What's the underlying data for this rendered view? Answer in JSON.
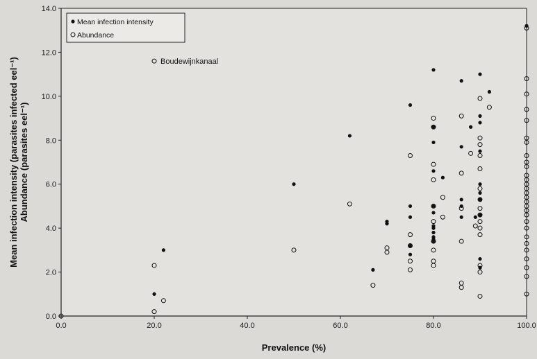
{
  "chart_data": {
    "type": "scatter",
    "xlabel": "Prevalence (%)",
    "ylabel_lines": [
      "Mean infection intensity (parasites infected eel⁻¹)",
      "Abundance (parasites eel⁻¹)"
    ],
    "xlim": [
      0,
      100
    ],
    "ylim": [
      0,
      14
    ],
    "x_ticks": [
      0,
      20,
      40,
      60,
      80,
      100
    ],
    "x_tick_labels": [
      "0.0",
      "20.0",
      "40.0",
      "60.0",
      "80.0",
      "100.0"
    ],
    "y_ticks": [
      0,
      2,
      4,
      6,
      8,
      10,
      12,
      14
    ],
    "y_tick_labels": [
      "0.0",
      "2.0",
      "4.0",
      "6.0",
      "8.0",
      "10.0",
      "12.0",
      "14.0"
    ],
    "grid": false,
    "legend_position": "top-left",
    "annotation": {
      "label": "Boudewijnkanaal",
      "x": 20,
      "y": 11.6
    },
    "series": [
      {
        "name": "Mean infection intensity",
        "marker": "filled-circle",
        "points": [
          [
            20,
            1.0
          ],
          [
            22,
            3.0
          ],
          [
            50,
            6.0
          ],
          [
            62,
            8.2
          ],
          [
            67,
            2.1
          ],
          [
            70,
            4.3
          ],
          [
            70,
            4.2
          ],
          [
            75,
            9.6
          ],
          [
            75,
            5.0
          ],
          [
            75,
            4.5
          ],
          [
            75,
            3.2
          ],
          [
            75,
            2.8
          ],
          [
            80,
            11.2
          ],
          [
            80,
            8.6
          ],
          [
            80,
            7.9
          ],
          [
            80,
            6.6
          ],
          [
            80,
            5.0
          ],
          [
            80,
            4.7
          ],
          [
            80,
            4.1
          ],
          [
            80,
            4.0
          ],
          [
            80,
            3.8
          ],
          [
            80,
            3.6
          ],
          [
            80,
            3.5
          ],
          [
            80,
            3.4
          ],
          [
            82,
            6.3
          ],
          [
            86,
            10.7
          ],
          [
            86,
            7.7
          ],
          [
            86,
            5.3
          ],
          [
            86,
            5.0
          ],
          [
            86,
            4.5
          ],
          [
            88,
            8.6
          ],
          [
            89,
            4.5
          ],
          [
            90,
            11.0
          ],
          [
            90,
            9.1
          ],
          [
            90,
            8.8
          ],
          [
            90,
            7.5
          ],
          [
            90,
            6.0
          ],
          [
            90,
            5.6
          ],
          [
            90,
            5.3
          ],
          [
            90,
            4.6
          ],
          [
            90,
            2.6
          ],
          [
            90,
            2.2
          ],
          [
            92,
            10.2
          ],
          [
            100,
            13.2
          ]
        ]
      },
      {
        "name": "Abundance",
        "marker": "open-circle",
        "points": [
          [
            0,
            0.0
          ],
          [
            20,
            2.3
          ],
          [
            20,
            0.2
          ],
          [
            22,
            0.7
          ],
          [
            20,
            11.6
          ],
          [
            50,
            3.0
          ],
          [
            62,
            5.1
          ],
          [
            67,
            1.4
          ],
          [
            70,
            3.1
          ],
          [
            70,
            2.9
          ],
          [
            75,
            7.3
          ],
          [
            75,
            3.7
          ],
          [
            75,
            3.2
          ],
          [
            75,
            2.5
          ],
          [
            75,
            2.1
          ],
          [
            80,
            9.0
          ],
          [
            80,
            8.6
          ],
          [
            80,
            6.9
          ],
          [
            80,
            6.2
          ],
          [
            80,
            5.0
          ],
          [
            80,
            4.3
          ],
          [
            80,
            3.4
          ],
          [
            80,
            3.0
          ],
          [
            80,
            2.5
          ],
          [
            80,
            2.3
          ],
          [
            82,
            5.4
          ],
          [
            82,
            4.5
          ],
          [
            86,
            9.1
          ],
          [
            86,
            6.5
          ],
          [
            86,
            4.9
          ],
          [
            86,
            3.4
          ],
          [
            86,
            1.5
          ],
          [
            86,
            1.3
          ],
          [
            88,
            7.4
          ],
          [
            89,
            4.1
          ],
          [
            90,
            9.9
          ],
          [
            90,
            8.1
          ],
          [
            90,
            7.8
          ],
          [
            90,
            7.3
          ],
          [
            90,
            6.7
          ],
          [
            90,
            5.8
          ],
          [
            90,
            5.3
          ],
          [
            90,
            4.9
          ],
          [
            90,
            4.6
          ],
          [
            90,
            4.3
          ],
          [
            90,
            4.0
          ],
          [
            90,
            3.7
          ],
          [
            90,
            2.3
          ],
          [
            90,
            2.0
          ],
          [
            90,
            0.9
          ],
          [
            92,
            9.5
          ],
          [
            100,
            13.1
          ],
          [
            100,
            10.8
          ],
          [
            100,
            10.1
          ],
          [
            100,
            9.4
          ],
          [
            100,
            8.9
          ],
          [
            100,
            8.1
          ],
          [
            100,
            7.9
          ],
          [
            100,
            7.3
          ],
          [
            100,
            7.0
          ],
          [
            100,
            6.8
          ],
          [
            100,
            6.4
          ],
          [
            100,
            6.2
          ],
          [
            100,
            6.0
          ],
          [
            100,
            5.8
          ],
          [
            100,
            5.6
          ],
          [
            100,
            5.4
          ],
          [
            100,
            5.2
          ],
          [
            100,
            5.0
          ],
          [
            100,
            4.8
          ],
          [
            100,
            4.6
          ],
          [
            100,
            4.3
          ],
          [
            100,
            4.0
          ],
          [
            100,
            3.6
          ],
          [
            100,
            3.3
          ],
          [
            100,
            3.0
          ],
          [
            100,
            2.6
          ],
          [
            100,
            2.2
          ],
          [
            100,
            1.8
          ],
          [
            100,
            1.0
          ]
        ]
      }
    ]
  }
}
